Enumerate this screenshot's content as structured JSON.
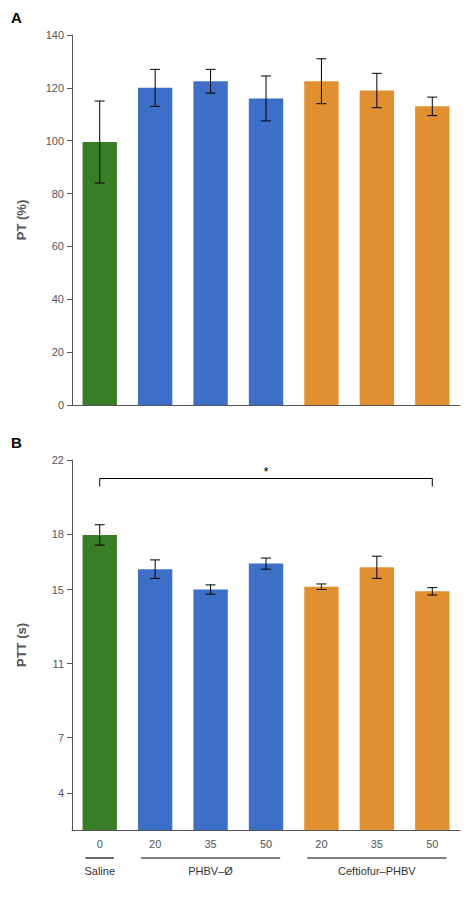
{
  "chart_data": [
    {
      "type": "bar",
      "title": "A",
      "ylabel": "PT (%)",
      "categories": [
        null,
        null,
        null,
        null,
        null,
        null,
        null
      ],
      "values": [
        99.5,
        120.0,
        122.5,
        116.0,
        122.5,
        119.0,
        113.0
      ],
      "errors": [
        15.5,
        7.0,
        4.5,
        8.5,
        8.5,
        6.5,
        3.5
      ],
      "colors": [
        "#3a7d27",
        "#3d6fc8",
        "#3d6fc8",
        "#3d6fc8",
        "#e09030",
        "#e09030",
        "#e09030"
      ],
      "ylim": [
        0,
        140
      ],
      "yticks": [
        0,
        20,
        40,
        60,
        80,
        100,
        120,
        140
      ],
      "grid": false
    },
    {
      "type": "bar",
      "title": "B",
      "ylabel": "PTT (s)",
      "categories": [
        "0",
        "20",
        "35",
        "50",
        "20",
        "35",
        "50"
      ],
      "values": [
        17.95,
        16.1,
        15.0,
        16.4,
        15.15,
        16.2,
        14.9
      ],
      "errors": [
        0.55,
        0.5,
        0.25,
        0.3,
        0.15,
        0.6,
        0.2
      ],
      "colors": [
        "#3a7d27",
        "#3d6fc8",
        "#3d6fc8",
        "#3d6fc8",
        "#e09030",
        "#e09030",
        "#e09030"
      ],
      "ylim": [
        2,
        22
      ],
      "yticks": [
        4,
        7,
        11,
        15,
        18,
        22
      ],
      "grid": false,
      "annotations": [
        {
          "text": "*",
          "x1": 0,
          "x2": 6,
          "y": 21.0
        }
      ],
      "groups": [
        {
          "label": "Saline",
          "range": [
            0,
            0
          ]
        },
        {
          "label": "PHBV–Ø",
          "range": [
            1,
            3
          ]
        },
        {
          "label": "Ceftiofur–PHBV",
          "range": [
            4,
            6
          ]
        }
      ]
    }
  ]
}
